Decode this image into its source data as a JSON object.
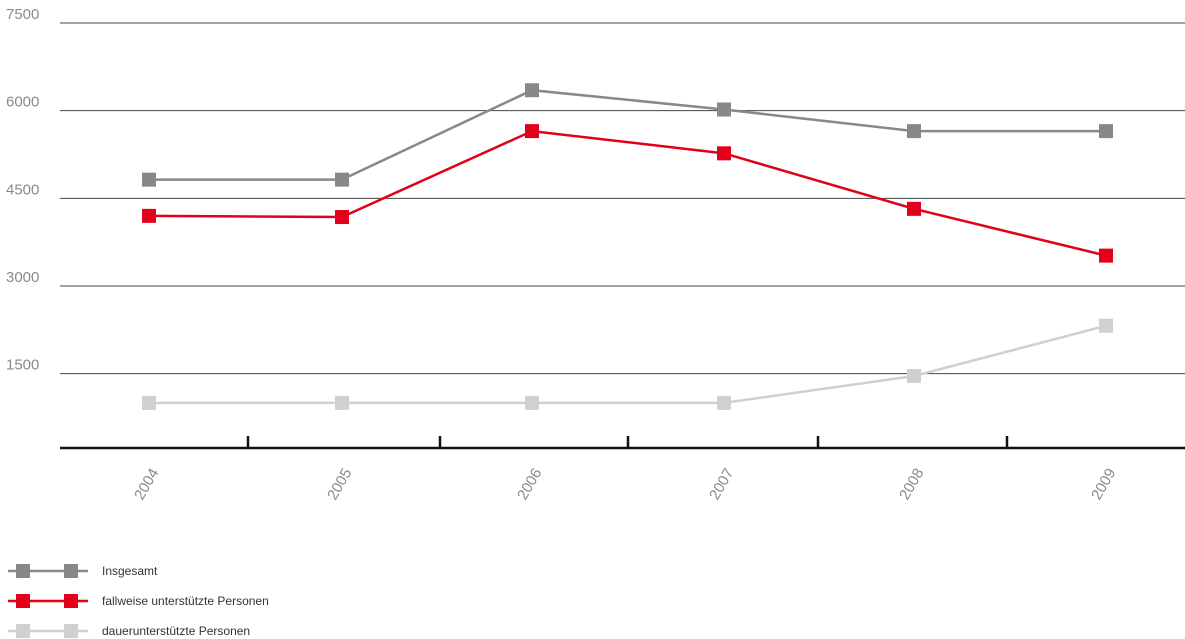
{
  "chart_data": {
    "type": "line",
    "title": "",
    "xlabel": "",
    "ylabel": "",
    "categories": [
      "2004",
      "2005",
      "2006",
      "2007",
      "2008",
      "2009"
    ],
    "yticks": [
      "7500",
      "6000",
      "4500",
      "3000",
      "1500"
    ],
    "ylim": [
      0,
      7500
    ],
    "grid": true,
    "legend_position": "bottom-left",
    "series": [
      {
        "name": "Insgesamt",
        "color": "#888888",
        "values": [
          4820,
          4820,
          6350,
          6020,
          5650,
          5650
        ]
      },
      {
        "name": "fallweise unterstützte Personen",
        "color": "#e2001a",
        "values": [
          4200,
          4180,
          5650,
          5270,
          4320,
          3520
        ]
      },
      {
        "name": "dauerunterstützte Personen",
        "color": "#d0d0d0",
        "values": [
          1000,
          1000,
          1000,
          1000,
          1460,
          2320
        ]
      }
    ]
  }
}
